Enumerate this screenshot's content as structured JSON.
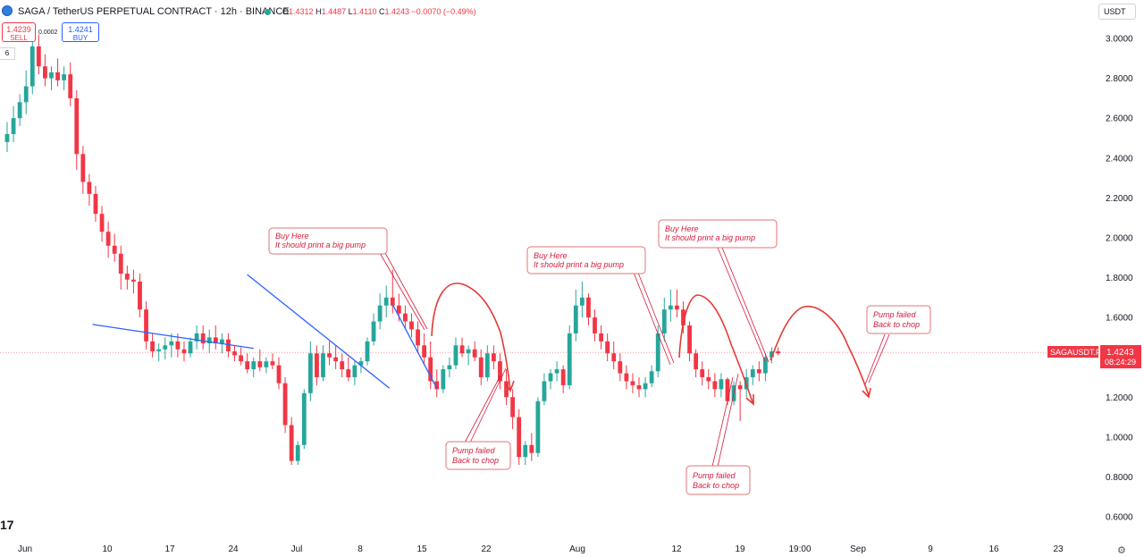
{
  "header": {
    "title": "SAGA / TetherUS PERPETUAL CONTRACT · 12h · BINANCE",
    "o_label": "O",
    "o_value": "1.4312",
    "h_label": "H",
    "h_value": "1.4487",
    "l_label": "L",
    "l_value": "1.4110",
    "c_label": "C",
    "c_value": "1.4243",
    "change": "−0.0070 (−0.49%)",
    "sell_price": "1.4239",
    "sell_label": "SELL",
    "buy_price": "1.4241",
    "buy_label": "BUY",
    "spread": "0.0002",
    "indicator_count": "6",
    "currency": "USDT"
  },
  "last_price": {
    "symbol": "SAGAUSDT.P",
    "value": "1.4243",
    "countdown": "08:24:29"
  },
  "branding": {
    "logo_text": "17"
  },
  "colors": {
    "up": "#26a69a",
    "down": "#f23645",
    "trendline": "#2962ff",
    "annotation": "#d81b3c"
  },
  "icons": {
    "settings": "gear-icon",
    "symbol": "saga-logo-icon"
  },
  "chart_data": {
    "type": "candlestick",
    "timeframe": "12h",
    "symbol": "SAGAUSDT.P",
    "ylim": [
      0.55,
      3.06
    ],
    "y_ticks": [
      "3.0000",
      "2.8000",
      "2.6000",
      "2.4000",
      "2.2000",
      "2.0000",
      "1.8000",
      "1.6000",
      "1.4000",
      "1.2000",
      "1.0000",
      "0.8000",
      "0.6000"
    ],
    "x_ticks": [
      "Jun",
      "10",
      "17",
      "24",
      "Jul",
      "8",
      "15",
      "22",
      "Aug",
      "12",
      "19",
      "19:00",
      "Sep",
      "9",
      "16",
      "23"
    ],
    "ohlc": [
      [
        2.48,
        2.58,
        2.43,
        2.52
      ],
      [
        2.52,
        2.66,
        2.48,
        2.6
      ],
      [
        2.6,
        2.72,
        2.56,
        2.68
      ],
      [
        2.68,
        2.84,
        2.62,
        2.76
      ],
      [
        2.76,
        3.0,
        2.72,
        2.96
      ],
      [
        2.96,
        3.02,
        2.82,
        2.86
      ],
      [
        2.86,
        2.92,
        2.76,
        2.8
      ],
      [
        2.8,
        2.86,
        2.74,
        2.83
      ],
      [
        2.83,
        2.9,
        2.76,
        2.79
      ],
      [
        2.79,
        2.86,
        2.74,
        2.82
      ],
      [
        2.82,
        2.88,
        2.66,
        2.7
      ],
      [
        2.7,
        2.74,
        2.34,
        2.42
      ],
      [
        2.42,
        2.46,
        2.22,
        2.28
      ],
      [
        2.28,
        2.32,
        2.16,
        2.22
      ],
      [
        2.22,
        2.26,
        2.08,
        2.12
      ],
      [
        2.12,
        2.16,
        1.98,
        2.03
      ],
      [
        2.03,
        2.08,
        1.9,
        1.96
      ],
      [
        1.96,
        2.02,
        1.88,
        1.92
      ],
      [
        1.92,
        1.96,
        1.74,
        1.82
      ],
      [
        1.82,
        1.86,
        1.74,
        1.79
      ],
      [
        1.79,
        1.84,
        1.72,
        1.78
      ],
      [
        1.78,
        1.82,
        1.6,
        1.64
      ],
      [
        1.64,
        1.68,
        1.44,
        1.48
      ],
      [
        1.48,
        1.52,
        1.4,
        1.43
      ],
      [
        1.43,
        1.47,
        1.38,
        1.44
      ],
      [
        1.44,
        1.5,
        1.39,
        1.46
      ],
      [
        1.46,
        1.52,
        1.4,
        1.48
      ],
      [
        1.48,
        1.52,
        1.4,
        1.44
      ],
      [
        1.44,
        1.48,
        1.38,
        1.42
      ],
      [
        1.42,
        1.5,
        1.4,
        1.48
      ],
      [
        1.48,
        1.56,
        1.44,
        1.52
      ],
      [
        1.52,
        1.56,
        1.44,
        1.47
      ],
      [
        1.47,
        1.54,
        1.42,
        1.5
      ],
      [
        1.5,
        1.56,
        1.44,
        1.47
      ],
      [
        1.47,
        1.52,
        1.42,
        1.49
      ],
      [
        1.49,
        1.52,
        1.4,
        1.43
      ],
      [
        1.43,
        1.46,
        1.38,
        1.41
      ],
      [
        1.41,
        1.45,
        1.36,
        1.38
      ],
      [
        1.38,
        1.42,
        1.32,
        1.34
      ],
      [
        1.34,
        1.4,
        1.3,
        1.38
      ],
      [
        1.38,
        1.44,
        1.33,
        1.35
      ],
      [
        1.35,
        1.4,
        1.32,
        1.38
      ],
      [
        1.38,
        1.42,
        1.34,
        1.36
      ],
      [
        1.36,
        1.4,
        1.24,
        1.27
      ],
      [
        1.27,
        1.3,
        1.02,
        1.06
      ],
      [
        1.06,
        1.1,
        0.86,
        0.88
      ],
      [
        0.88,
        0.98,
        0.86,
        0.96
      ],
      [
        0.96,
        1.24,
        0.94,
        1.22
      ],
      [
        1.22,
        1.48,
        1.18,
        1.42
      ],
      [
        1.42,
        1.46,
        1.26,
        1.3
      ],
      [
        1.3,
        1.46,
        1.28,
        1.42
      ],
      [
        1.42,
        1.48,
        1.36,
        1.4
      ],
      [
        1.4,
        1.46,
        1.34,
        1.38
      ],
      [
        1.38,
        1.42,
        1.3,
        1.34
      ],
      [
        1.34,
        1.4,
        1.28,
        1.3
      ],
      [
        1.3,
        1.38,
        1.26,
        1.36
      ],
      [
        1.36,
        1.4,
        1.32,
        1.38
      ],
      [
        1.38,
        1.5,
        1.36,
        1.48
      ],
      [
        1.48,
        1.62,
        1.46,
        1.58
      ],
      [
        1.58,
        1.72,
        1.54,
        1.66
      ],
      [
        1.66,
        1.76,
        1.6,
        1.7
      ],
      [
        1.7,
        1.84,
        1.62,
        1.66
      ],
      [
        1.66,
        1.72,
        1.58,
        1.62
      ],
      [
        1.62,
        1.66,
        1.54,
        1.58
      ],
      [
        1.58,
        1.62,
        1.5,
        1.54
      ],
      [
        1.54,
        1.58,
        1.42,
        1.46
      ],
      [
        1.46,
        1.52,
        1.36,
        1.4
      ],
      [
        1.4,
        1.48,
        1.24,
        1.28
      ],
      [
        1.28,
        1.34,
        1.2,
        1.24
      ],
      [
        1.24,
        1.36,
        1.22,
        1.34
      ],
      [
        1.34,
        1.4,
        1.3,
        1.36
      ],
      [
        1.36,
        1.5,
        1.34,
        1.46
      ],
      [
        1.46,
        1.5,
        1.4,
        1.42
      ],
      [
        1.42,
        1.46,
        1.36,
        1.44
      ],
      [
        1.44,
        1.48,
        1.38,
        1.4
      ],
      [
        1.4,
        1.44,
        1.26,
        1.3
      ],
      [
        1.3,
        1.46,
        1.28,
        1.42
      ],
      [
        1.42,
        1.46,
        1.34,
        1.38
      ],
      [
        1.38,
        1.42,
        1.24,
        1.28
      ],
      [
        1.28,
        1.34,
        1.16,
        1.2
      ],
      [
        1.2,
        1.24,
        1.04,
        1.1
      ],
      [
        1.1,
        1.14,
        0.86,
        0.9
      ],
      [
        0.9,
        0.98,
        0.86,
        0.96
      ],
      [
        0.96,
        1.02,
        0.88,
        0.92
      ],
      [
        0.92,
        1.2,
        0.9,
        1.18
      ],
      [
        1.18,
        1.32,
        1.16,
        1.28
      ],
      [
        1.28,
        1.34,
        1.24,
        1.32
      ],
      [
        1.32,
        1.38,
        1.28,
        1.34
      ],
      [
        1.34,
        1.36,
        1.22,
        1.26
      ],
      [
        1.26,
        1.56,
        1.24,
        1.52
      ],
      [
        1.52,
        1.74,
        1.48,
        1.66
      ],
      [
        1.66,
        1.78,
        1.6,
        1.7
      ],
      [
        1.7,
        1.72,
        1.56,
        1.6
      ],
      [
        1.6,
        1.64,
        1.48,
        1.52
      ],
      [
        1.52,
        1.56,
        1.44,
        1.48
      ],
      [
        1.48,
        1.52,
        1.38,
        1.42
      ],
      [
        1.42,
        1.48,
        1.34,
        1.38
      ],
      [
        1.38,
        1.42,
        1.28,
        1.32
      ],
      [
        1.32,
        1.36,
        1.24,
        1.28
      ],
      [
        1.28,
        1.32,
        1.22,
        1.26
      ],
      [
        1.26,
        1.3,
        1.2,
        1.24
      ],
      [
        1.24,
        1.3,
        1.2,
        1.27
      ],
      [
        1.27,
        1.36,
        1.25,
        1.33
      ],
      [
        1.33,
        1.56,
        1.3,
        1.52
      ],
      [
        1.52,
        1.7,
        1.48,
        1.64
      ],
      [
        1.64,
        1.74,
        1.58,
        1.66
      ],
      [
        1.66,
        1.74,
        1.6,
        1.64
      ],
      [
        1.64,
        1.68,
        1.52,
        1.56
      ],
      [
        1.56,
        1.58,
        1.38,
        1.42
      ],
      [
        1.42,
        1.44,
        1.3,
        1.34
      ],
      [
        1.34,
        1.38,
        1.26,
        1.3
      ],
      [
        1.3,
        1.34,
        1.24,
        1.28
      ],
      [
        1.28,
        1.32,
        1.2,
        1.24
      ],
      [
        1.24,
        1.32,
        1.2,
        1.29
      ],
      [
        1.29,
        1.3,
        1.16,
        1.18
      ],
      [
        1.18,
        1.28,
        1.16,
        1.26
      ],
      [
        1.26,
        1.28,
        1.08,
        1.24
      ],
      [
        1.24,
        1.34,
        1.2,
        1.3
      ],
      [
        1.3,
        1.36,
        1.26,
        1.34
      ],
      [
        1.34,
        1.38,
        1.28,
        1.32
      ],
      [
        1.32,
        1.42,
        1.28,
        1.4
      ],
      [
        1.4,
        1.45,
        1.37,
        1.43
      ],
      [
        1.43,
        1.45,
        1.41,
        1.42
      ]
    ],
    "trendlines": [
      {
        "from": [
          13.5,
          1.565
        ],
        "to": [
          39,
          1.445
        ]
      },
      {
        "from": [
          38,
          1.815
        ],
        "to": [
          60.5,
          1.245
        ]
      },
      {
        "from": [
          61,
          1.665
        ],
        "to": [
          68,
          1.245
        ]
      }
    ],
    "last_price_line": 1.4243,
    "annotations": [
      {
        "lines": [
          "Buy Here",
          "It should print a big pump"
        ]
      },
      {
        "lines": [
          "Pump failed",
          "Back to chop"
        ]
      },
      {
        "lines": [
          "Buy Here",
          "It should print a big pump"
        ]
      },
      {
        "lines": [
          "Buy Here",
          "It should print a big pump"
        ]
      },
      {
        "lines": [
          "Pump failed",
          "Back to chop"
        ]
      },
      {
        "lines": [
          "Pump failed",
          "Back to chop"
        ]
      }
    ]
  }
}
